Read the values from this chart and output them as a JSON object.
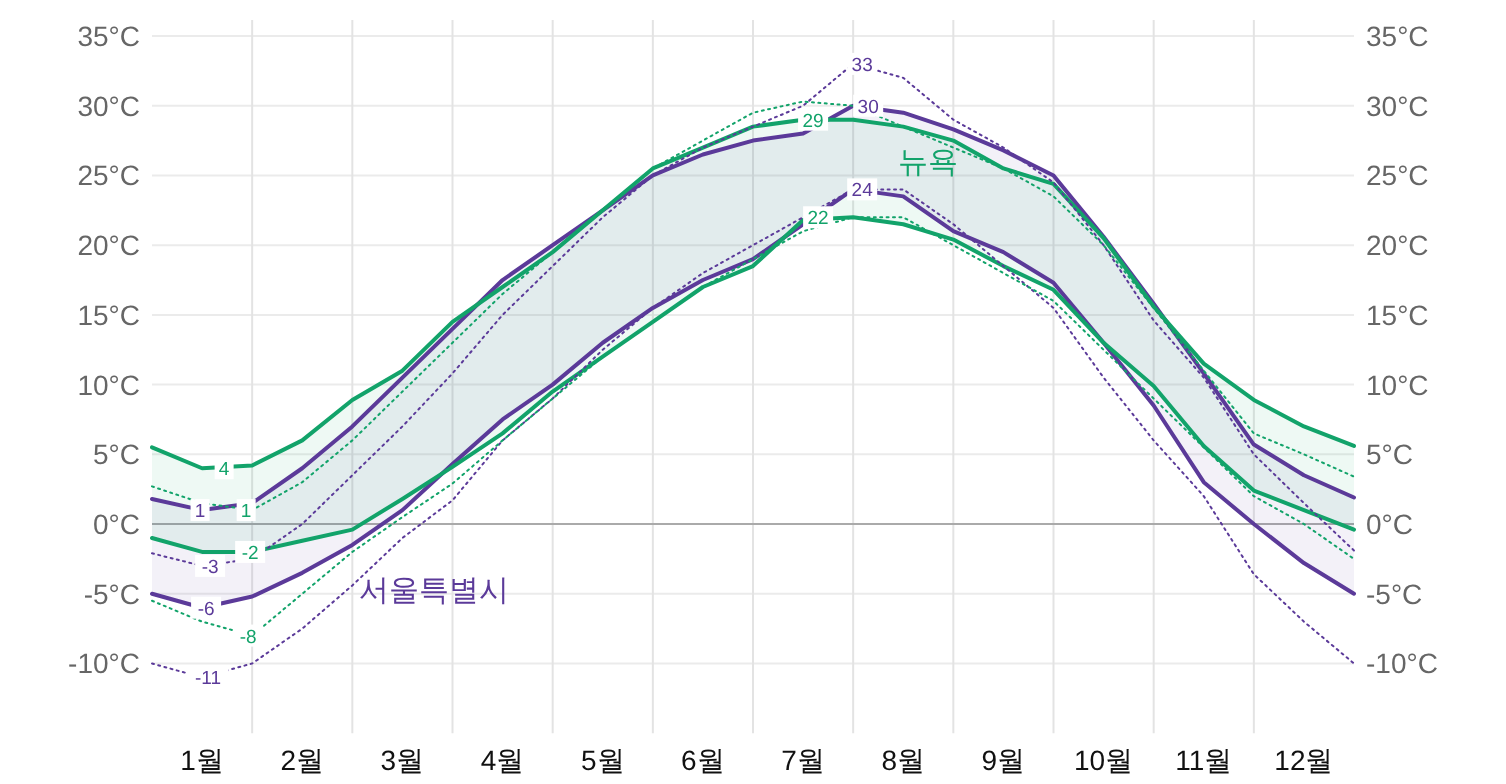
{
  "chart_data": {
    "type": "line",
    "x": [
      0,
      0.5,
      1,
      1.5,
      2,
      2.5,
      3,
      3.5,
      4,
      4.5,
      5,
      5.5,
      6,
      6.5,
      7,
      7.5,
      8,
      8.5,
      9,
      9.5,
      10,
      10.5,
      11,
      11.5,
      12
    ],
    "series": [
      {
        "color": "#5b3a99",
        "values": [
          1.8,
          1,
          1.5,
          4,
          7,
          10.5,
          14,
          17.5,
          20,
          22.5,
          25,
          26.5,
          27.5,
          28,
          30,
          29.5,
          28.3,
          26.8,
          25,
          20.6,
          15.8,
          10.8,
          5.7,
          3.5,
          1.9
        ],
        "lower": [
          -5,
          -6,
          -5.2,
          -3.5,
          -1.5,
          1,
          4.3,
          7.5,
          10,
          13,
          15.5,
          17.5,
          19,
          21.5,
          24,
          23.5,
          21,
          19.5,
          17.3,
          13,
          8.5,
          3,
          0,
          -2.8,
          -5
        ],
        "upper": [
          1.8,
          1,
          1.5,
          4,
          7,
          10.5,
          14,
          17.5,
          20,
          22.5,
          25,
          26.5,
          27.5,
          28,
          30,
          29.5,
          28.3,
          26.8,
          25,
          20.6,
          15.8,
          10.8,
          5.7,
          3.5,
          1.9
        ]
      },
      {
        "name": "서울특별시",
        "color": "#5b3a99",
        "values": [
          -5,
          -6,
          -5.2,
          -3.5,
          -1.5,
          1,
          4.3,
          7.5,
          10,
          13,
          15.5,
          17.5,
          19,
          21.5,
          24,
          23.5,
          21,
          19.5,
          17.3,
          13,
          8.5,
          3,
          0,
          -2.8,
          -5
        ]
      },
      {
        "name": "뉴욕",
        "color": "#12a36a",
        "values": [
          5.5,
          4,
          4.2,
          6,
          8.9,
          11,
          14.5,
          17,
          19.5,
          22.5,
          25.5,
          27,
          28.5,
          29,
          29,
          28.5,
          27.5,
          25.5,
          24.4,
          20.5,
          15.6,
          11.5,
          8.9,
          7,
          5.6
        ],
        "lower": [
          -1,
          -2,
          -2,
          -1.2,
          -0.4,
          1.8,
          4.1,
          6.5,
          9.5,
          12,
          14.5,
          17,
          18.5,
          21.8,
          22,
          21.5,
          20.4,
          18.5,
          16.8,
          13,
          9.9,
          5.6,
          2.4,
          1,
          -0.4
        ],
        "upper": [
          5.5,
          4,
          4.2,
          6,
          8.9,
          11,
          14.5,
          17,
          19.5,
          22.5,
          25.5,
          27,
          28.5,
          29,
          29,
          28.5,
          27.5,
          25.5,
          24.4,
          20.5,
          15.6,
          11.5,
          8.9,
          7,
          5.6
        ]
      },
      {
        "color": "#12a36a",
        "values": [
          -1,
          -2,
          -2,
          -1.2,
          -0.4,
          1.8,
          4.1,
          6.5,
          9.5,
          12,
          14.5,
          17,
          18.5,
          21.8,
          22,
          21.5,
          20.4,
          18.5,
          16.8,
          13,
          9.9,
          5.6,
          2.4,
          1,
          -0.4
        ]
      },
      {
        "color": "#5b3a99",
        "line_style": "dotted",
        "values": [
          -2.1,
          -3,
          -2.5,
          0,
          3.5,
          7,
          10.8,
          15,
          18.5,
          22,
          25,
          27,
          28.5,
          30,
          33,
          32,
          29,
          27,
          24.5,
          20,
          14.6,
          10.5,
          5,
          1.5,
          -1.9
        ]
      },
      {
        "color": "#5b3a99",
        "line_style": "dotted",
        "values": [
          -10,
          -11,
          -10,
          -7.5,
          -4.4,
          -1,
          1.7,
          6,
          9,
          12.5,
          15.5,
          18,
          20,
          22,
          24,
          24,
          21.5,
          18.5,
          15.5,
          10.5,
          6,
          2,
          -3.6,
          -7,
          -10
        ]
      },
      {
        "color": "#12a36a",
        "line_style": "dotted",
        "values": [
          2.7,
          1.5,
          1,
          3,
          6,
          9.5,
          13,
          16.5,
          19.5,
          22.5,
          25.5,
          27.5,
          29.5,
          30.3,
          30,
          28.5,
          27,
          25.5,
          23.5,
          20,
          15.5,
          11,
          6.5,
          5,
          3.4
        ]
      },
      {
        "color": "#12a36a",
        "line_style": "dotted",
        "values": [
          -5.5,
          -7,
          -8,
          -5,
          -2,
          0.5,
          2.9,
          6,
          9,
          12,
          14.5,
          17,
          19,
          21,
          22,
          22,
          20,
          18,
          16,
          12.5,
          9,
          5.5,
          2,
          0,
          -2.5
        ]
      }
    ],
    "xlim": [
      0,
      12
    ],
    "xticks": [
      {
        "value": 0.5,
        "label": "1월"
      },
      {
        "value": 1,
        "label": null
      },
      {
        "value": 1.5,
        "label": "2월"
      },
      {
        "value": 2,
        "label": null
      },
      {
        "value": 2.5,
        "label": "3월"
      },
      {
        "value": 3,
        "label": null
      },
      {
        "value": 3.5,
        "label": "4월"
      },
      {
        "value": 4,
        "label": null
      },
      {
        "value": 4.5,
        "label": "5월"
      },
      {
        "value": 5,
        "label": null
      },
      {
        "value": 5.5,
        "label": "6월"
      },
      {
        "value": 6,
        "label": null
      },
      {
        "value": 6.5,
        "label": "7월"
      },
      {
        "value": 7,
        "label": null
      },
      {
        "value": 7.5,
        "label": "8월"
      },
      {
        "value": 8,
        "label": null
      },
      {
        "value": 8.5,
        "label": "9월"
      },
      {
        "value": 9,
        "label": null
      },
      {
        "value": 9.5,
        "label": "10월"
      },
      {
        "value": 10,
        "label": null
      },
      {
        "value": 10.5,
        "label": "11월"
      },
      {
        "value": 11,
        "label": null
      },
      {
        "value": 11.5,
        "label": "12월"
      }
    ],
    "ylim": [
      -15,
      35
    ],
    "yticks": [
      {
        "value": -10,
        "label": "-10°C"
      },
      {
        "value": -5,
        "label": "-5°C"
      },
      {
        "value": 0,
        "label": "0°C"
      },
      {
        "value": 5,
        "label": "5°C"
      },
      {
        "value": 10,
        "label": "10°C"
      },
      {
        "value": 15,
        "label": "15°C"
      },
      {
        "value": 20,
        "label": "20°C"
      },
      {
        "value": 25,
        "label": "25°C"
      },
      {
        "value": 30,
        "label": "30°C"
      },
      {
        "value": 35,
        "label": "35°C"
      }
    ],
    "y2lim": [
      -15,
      35
    ],
    "y2ticks": [
      {
        "value": -10,
        "label": "-10°C"
      },
      {
        "value": -5,
        "label": "-5°C"
      },
      {
        "value": 0,
        "label": "0°C"
      },
      {
        "value": 5,
        "label": "5°C"
      },
      {
        "value": 10,
        "label": "10°C"
      },
      {
        "value": 15,
        "label": "15°C"
      },
      {
        "value": 20,
        "label": "20°C"
      },
      {
        "value": 25,
        "label": "25°C"
      },
      {
        "value": 30,
        "label": "30°C"
      },
      {
        "value": 35,
        "label": "35°C"
      }
    ],
    "grid": true,
    "ref_lines": [
      {
        "axis": "y",
        "value": 0,
        "color": "#aaaaaa"
      }
    ],
    "annotations": [
      {
        "text": "4",
        "x": 0.72,
        "y": 4
      },
      {
        "text": "1",
        "x": 0.48,
        "y": 1
      },
      {
        "text": "1",
        "x": 0.94,
        "y": 1
      },
      {
        "text": "-2",
        "x": 0.98,
        "y": -2
      },
      {
        "text": "-3",
        "x": 0.58,
        "y": -3
      },
      {
        "text": "-6",
        "x": 0.54,
        "y": -6
      },
      {
        "text": "-8",
        "x": 0.96,
        "y": -8
      },
      {
        "text": "-11",
        "x": 0.56,
        "y": -11
      },
      {
        "text": "33",
        "x": 7.09,
        "y": 33
      },
      {
        "text": "30",
        "x": 7.15,
        "y": 30
      },
      {
        "text": "29",
        "x": 6.6,
        "y": 29
      },
      {
        "text": "24",
        "x": 7.09,
        "y": 24
      },
      {
        "text": "22",
        "x": 6.65,
        "y": 22
      }
    ]
  }
}
